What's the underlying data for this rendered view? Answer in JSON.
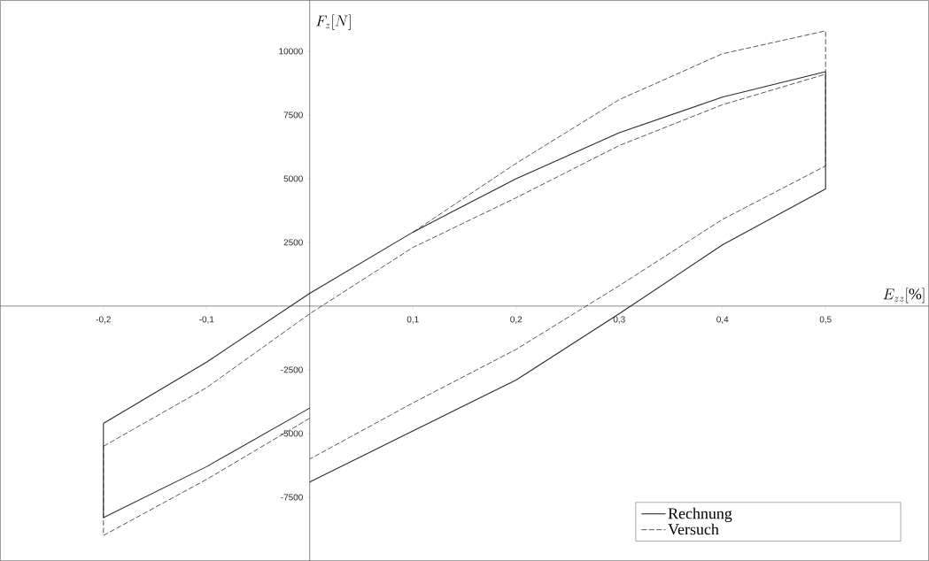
{
  "chart_data": {
    "type": "line",
    "xlabel": "E_{zz}[\\%]",
    "ylabel": "F_z[N]",
    "xlim": [
      -0.3,
      0.6
    ],
    "ylim": [
      -10000,
      12000
    ],
    "xticks": [
      {
        "value": -0.2,
        "label": "-0,2"
      },
      {
        "value": -0.1,
        "label": "-0,1"
      },
      {
        "value": 0.1,
        "label": "0,1"
      },
      {
        "value": 0.2,
        "label": "0,2"
      },
      {
        "value": 0.3,
        "label": "0,3"
      },
      {
        "value": 0.4,
        "label": "0,4"
      },
      {
        "value": 0.5,
        "label": "0,5"
      }
    ],
    "yticks": [
      -7500,
      -5000,
      -2500,
      2500,
      5000,
      7500,
      10000
    ],
    "grid": false,
    "legend": "bottom right",
    "marker": "none",
    "series": [
      {
        "name": "Rechnung",
        "color": "#2b2b2b",
        "line_style": "solid",
        "x": [
          -0.2,
          -0.1,
          0,
          0.1,
          0.2,
          0.3,
          0.4,
          0.5,
          0.5,
          0.4,
          0.3,
          0.2,
          0.1,
          0,
          null,
          0,
          -0.1,
          -0.2,
          -0.2
        ],
        "values": [
          -4600,
          -2200,
          500,
          2900,
          5000,
          6800,
          8200,
          9200,
          4600,
          2400,
          -300,
          -2900,
          -4900,
          -6900,
          null,
          -4000,
          -6300,
          -8300,
          -4600
        ]
      },
      {
        "name": "Versuch",
        "color": "#2b2b2b",
        "line_style": "dashed",
        "x": [
          -0.2,
          -0.1,
          0,
          0.1,
          0.2,
          0.3,
          0.4,
          0.5,
          0.5,
          0.4,
          0.3,
          0.2,
          0.1,
          0,
          null,
          0,
          -0.1,
          -0.2,
          -0.2
        ],
        "values": [
          -5500,
          -3200,
          -300,
          2300,
          4250,
          6300,
          7900,
          9100,
          5500,
          3400,
          800,
          -1700,
          -3800,
          -6000,
          null,
          -4400,
          -6800,
          -9000,
          -5500
        ]
      },
      {
        "color": "#2b2b2b",
        "line_style": "dashed",
        "x": [
          0.1,
          0.2,
          0.3,
          0.4,
          0.5,
          0.5
        ],
        "values": [
          2900,
          5600,
          8100,
          9900,
          10800,
          9200
        ]
      }
    ]
  }
}
